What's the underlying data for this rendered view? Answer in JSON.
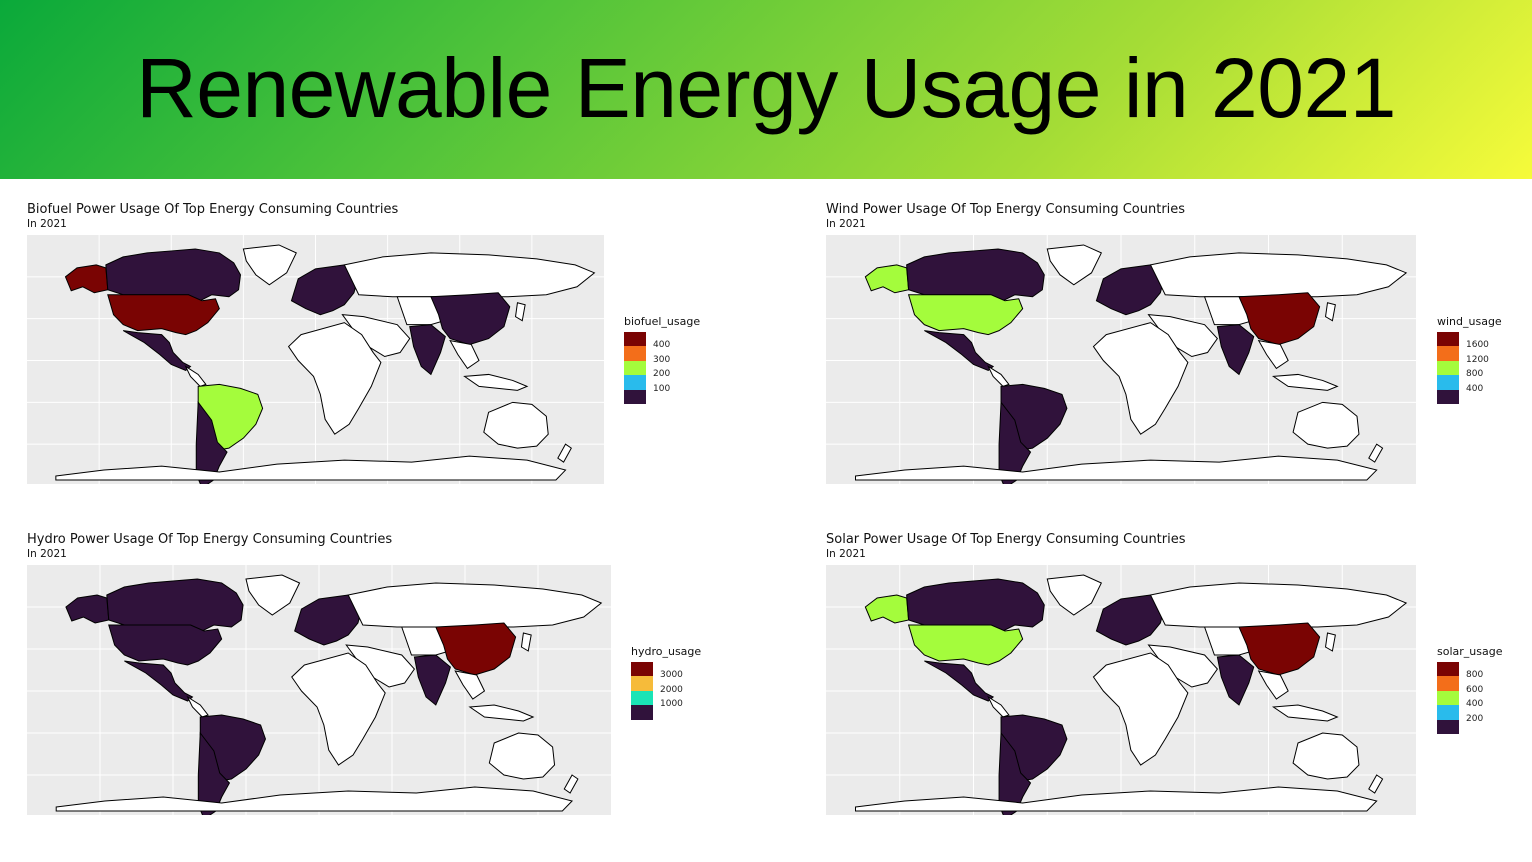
{
  "header": {
    "title": "Renewable Energy Usage in 2021"
  },
  "maps": [
    {
      "id": "biofuel",
      "title": "Biofuel Power Usage Of Top Energy Consuming Countries",
      "subtitle": "In 2021",
      "legend": {
        "title": "biofuel_usage",
        "labels": [
          "400",
          "300",
          "200",
          "100"
        ],
        "colors": [
          "#7a0403",
          "#f36e1a",
          "#a4fc3c",
          "#29bbec",
          "#30123b"
        ]
      },
      "fills": {
        "usa": "#7a0403",
        "alaska": "#7a0403",
        "canada": "#30123b",
        "mexico": "#30123b",
        "brazil": "#a4fc3c",
        "argentina": "#30123b",
        "europe": "#30123b",
        "india": "#30123b",
        "china": "#30123b"
      }
    },
    {
      "id": "wind",
      "title": "Wind Power Usage Of Top Energy Consuming Countries",
      "subtitle": "In 2021",
      "legend": {
        "title": "wind_usage",
        "labels": [
          "1600",
          "1200",
          "800",
          "400"
        ],
        "colors": [
          "#7a0403",
          "#f36e1a",
          "#a4fc3c",
          "#29bbec",
          "#30123b"
        ]
      },
      "fills": {
        "usa": "#a4fc3c",
        "alaska": "#a4fc3c",
        "canada": "#30123b",
        "mexico": "#30123b",
        "brazil": "#30123b",
        "argentina": "#30123b",
        "europe": "#30123b",
        "india": "#30123b",
        "china": "#7a0403"
      }
    },
    {
      "id": "hydro",
      "title": "Hydro Power Usage Of Top Energy Consuming Countries",
      "subtitle": "In 2021",
      "legend": {
        "title": "hydro_usage",
        "labels": [
          "3000",
          "2000",
          "1000"
        ],
        "colors": [
          "#7a0403",
          "#f6bb3a",
          "#1ae4b6",
          "#30123b"
        ]
      },
      "fills": {
        "usa": "#30123b",
        "alaska": "#30123b",
        "canada": "#30123b",
        "mexico": "#30123b",
        "brazil": "#30123b",
        "argentina": "#30123b",
        "europe": "#30123b",
        "india": "#30123b",
        "china": "#7a0403"
      }
    },
    {
      "id": "solar",
      "title": "Solar Power Usage Of Top Energy Consuming Countries",
      "subtitle": "In 2021",
      "legend": {
        "title": "solar_usage",
        "labels": [
          "800",
          "600",
          "400",
          "200"
        ],
        "colors": [
          "#7a0403",
          "#f36e1a",
          "#a4fc3c",
          "#29bbec",
          "#30123b"
        ]
      },
      "fills": {
        "usa": "#a4fc3c",
        "alaska": "#a4fc3c",
        "canada": "#30123b",
        "mexico": "#30123b",
        "brazil": "#30123b",
        "argentina": "#30123b",
        "europe": "#30123b",
        "india": "#30123b",
        "china": "#7a0403"
      }
    }
  ]
}
